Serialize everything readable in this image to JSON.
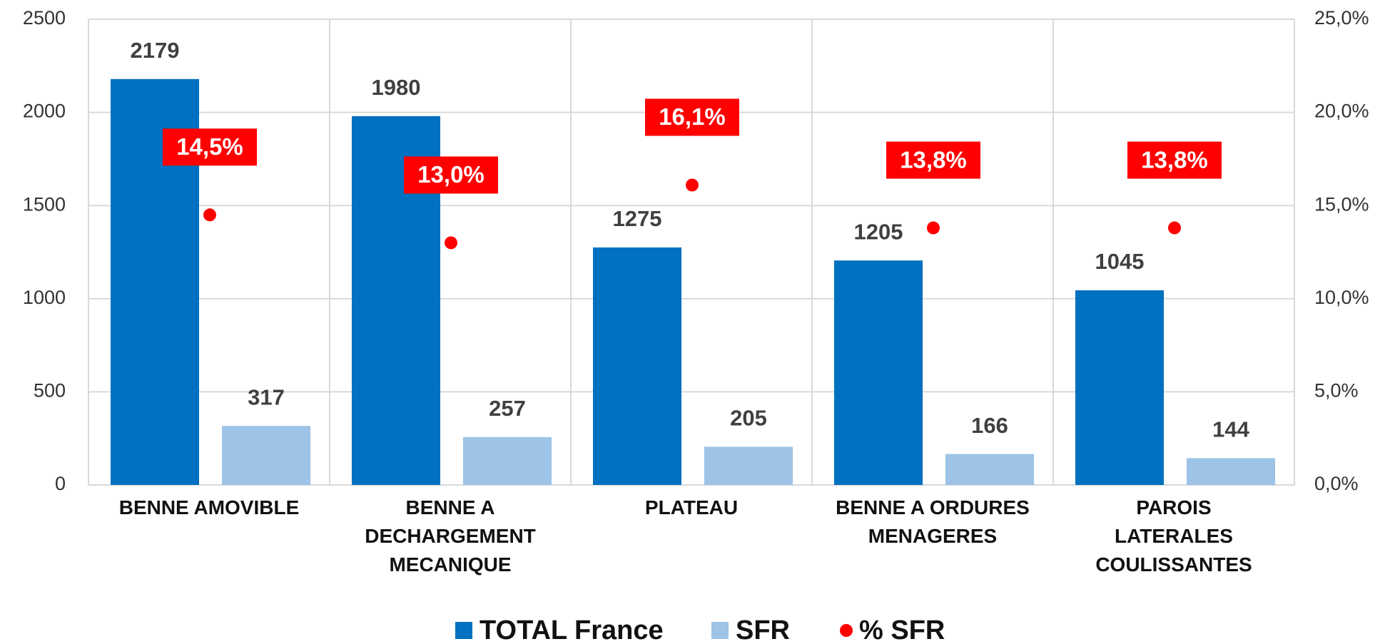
{
  "chart_data": {
    "type": "bar",
    "categories": [
      "BENNE AMOVIBLE",
      "BENNE A\nDECHARGEMENT\nMECANIQUE",
      "PLATEAU",
      "BENNE A ORDURES\nMENAGERES",
      "PAROIS\nLATERALES\nCOULISSANTES"
    ],
    "series": [
      {
        "name": "TOTAL France",
        "type": "bar",
        "color": "#0070c0",
        "values": [
          2179,
          1980,
          1275,
          1205,
          1045
        ]
      },
      {
        "name": "SFR",
        "type": "bar",
        "color": "#9dc3e6",
        "values": [
          317,
          257,
          205,
          166,
          144
        ]
      },
      {
        "name": "% SFR",
        "type": "scatter",
        "axis": "y2",
        "color": "#ff0000",
        "values": [
          14.5,
          13.0,
          16.1,
          13.8,
          13.8
        ],
        "value_labels": [
          "14,5%",
          "13,0%",
          "16,1%",
          "13,8%",
          "13,8%"
        ]
      }
    ],
    "ylim": [
      0,
      2500
    ],
    "yticks": [
      0,
      500,
      1000,
      1500,
      2000,
      2500
    ],
    "y2lim": [
      0,
      25
    ],
    "y2ticks": [
      {
        "value": 0,
        "label": "0,0%"
      },
      {
        "value": 5,
        "label": "5,0%"
      },
      {
        "value": 10,
        "label": "10,0%"
      },
      {
        "value": 15,
        "label": "15,0%"
      },
      {
        "value": 20,
        "label": "20,0%"
      },
      {
        "value": 25,
        "label": "25,0%"
      }
    ],
    "grid": true,
    "legend": "bottom"
  }
}
